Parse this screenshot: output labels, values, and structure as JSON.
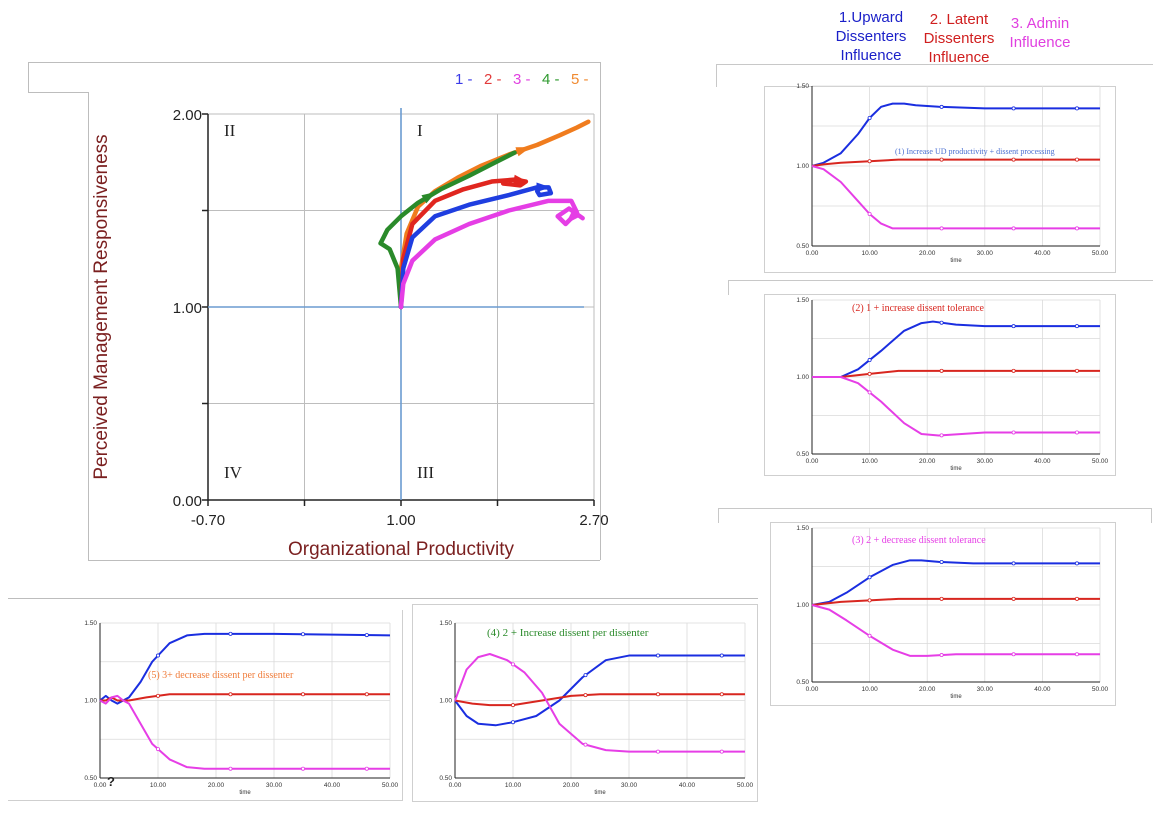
{
  "top_legend": [
    {
      "lines": [
        "1.Upward",
        "Dissenters",
        "Influence"
      ],
      "color": "#1a1fc8"
    },
    {
      "lines": [
        "2. Latent",
        "Dissenters",
        "Influence"
      ],
      "color": "#d01f1f"
    },
    {
      "lines": [
        "3. Admin",
        "Influence"
      ],
      "color": "#e040e0"
    }
  ],
  "phase_legend": [
    {
      "label": "1 -",
      "color": "#3b3be8"
    },
    {
      "label": "2 -",
      "color": "#e23b3b"
    },
    {
      "label": "3 -",
      "color": "#e040e0"
    },
    {
      "label": "4 -",
      "color": "#2e9a2e"
    },
    {
      "label": "5 -",
      "color": "#f08a30"
    }
  ],
  "colors": {
    "upward": "#1a2ee0",
    "latent": "#d8261f",
    "admin": "#e63ee6",
    "axis_line": "#6b9bd1",
    "axis_label": "#7a1f1f"
  },
  "chart_data": [
    {
      "type": "line",
      "name": "phase-plot",
      "xlabel": "Organizational Productivity",
      "ylabel": "Perceived Management Responsiveness",
      "x_tick_labels": [
        "-0.70",
        "1.00",
        "2.70"
      ],
      "y_tick_labels": [
        "0.00",
        "1.00",
        "2.00"
      ],
      "xlim": [
        -0.7,
        2.7
      ],
      "ylim": [
        0.0,
        2.0
      ],
      "quadrants": [
        "I",
        "II",
        "III",
        "IV"
      ],
      "grid": true,
      "series": [
        {
          "color": "#f07c1e",
          "x": [
            1.0,
            1.0,
            1.05,
            1.15,
            1.3,
            1.5,
            1.7,
            1.95,
            2.2,
            2.4,
            2.55,
            2.65
          ],
          "y": [
            1.0,
            1.2,
            1.38,
            1.52,
            1.6,
            1.67,
            1.73,
            1.79,
            1.84,
            1.89,
            1.93,
            1.96
          ]
        },
        {
          "color": "#2a8a2a",
          "x": [
            1.0,
            0.97,
            0.9,
            0.82,
            0.88,
            1.0,
            1.15,
            1.35,
            1.6,
            1.8,
            2.0
          ],
          "y": [
            1.0,
            1.2,
            1.3,
            1.33,
            1.4,
            1.47,
            1.54,
            1.61,
            1.68,
            1.74,
            1.8
          ]
        },
        {
          "color": "#e0261f",
          "x": [
            1.0,
            1.02,
            1.1,
            1.3,
            1.55,
            1.8,
            2.0,
            2.1,
            2.05,
            1.9
          ],
          "y": [
            1.0,
            1.25,
            1.43,
            1.55,
            1.61,
            1.65,
            1.66,
            1.65,
            1.63,
            1.64
          ]
        },
        {
          "color": "#1f3ee0",
          "x": [
            1.0,
            1.02,
            1.1,
            1.3,
            1.6,
            1.95,
            2.2,
            2.3,
            2.32,
            2.22,
            2.2
          ],
          "y": [
            1.0,
            1.2,
            1.36,
            1.47,
            1.53,
            1.58,
            1.62,
            1.62,
            1.59,
            1.58,
            1.6
          ]
        },
        {
          "color": "#e53ee5",
          "x": [
            1.0,
            1.02,
            1.1,
            1.3,
            1.6,
            1.95,
            2.3,
            2.5,
            2.55,
            2.45,
            2.38,
            2.48,
            2.6
          ],
          "y": [
            1.0,
            1.12,
            1.24,
            1.35,
            1.43,
            1.5,
            1.55,
            1.55,
            1.49,
            1.43,
            1.47,
            1.51,
            1.46
          ]
        }
      ]
    },
    {
      "type": "line",
      "name": "run-1",
      "title": "(1) Increase UD productivity + dissent processing",
      "title_color": "#4a6fd1",
      "xlabel": "time",
      "x_tick_labels": [
        "0.00",
        "10.00",
        "20.00",
        "30.00",
        "40.00",
        "50.00"
      ],
      "y_tick_labels": [
        "0.50",
        "1.00",
        "1.50"
      ],
      "xlim": [
        0,
        50
      ],
      "ylim": [
        0.5,
        1.5
      ],
      "series": [
        {
          "color": "#1a2ee0",
          "x": [
            0,
            2,
            5,
            8,
            10,
            12,
            14,
            16,
            18,
            22,
            30,
            50
          ],
          "y": [
            1.0,
            1.02,
            1.08,
            1.2,
            1.3,
            1.37,
            1.39,
            1.39,
            1.38,
            1.37,
            1.36,
            1.36
          ]
        },
        {
          "color": "#d8261f",
          "x": [
            0,
            2,
            5,
            10,
            15,
            20,
            50
          ],
          "y": [
            1.0,
            1.01,
            1.02,
            1.03,
            1.04,
            1.04,
            1.04
          ]
        },
        {
          "color": "#e63ee6",
          "x": [
            0,
            2,
            5,
            8,
            10,
            12,
            14,
            16,
            20,
            30,
            50
          ],
          "y": [
            1.0,
            0.98,
            0.9,
            0.78,
            0.7,
            0.64,
            0.61,
            0.61,
            0.61,
            0.61,
            0.61
          ]
        }
      ]
    },
    {
      "type": "line",
      "name": "run-2",
      "title": "(2) 1 +  increase dissent tolerance",
      "title_color": "#d8261f",
      "xlabel": "time",
      "x_tick_labels": [
        "0.00",
        "10.00",
        "20.00",
        "30.00",
        "40.00",
        "50.00"
      ],
      "y_tick_labels": [
        "0.50",
        "1.00",
        "1.50"
      ],
      "xlim": [
        0,
        50
      ],
      "ylim": [
        0.5,
        1.5
      ],
      "series": [
        {
          "color": "#1a2ee0",
          "x": [
            0,
            5,
            8,
            12,
            16,
            19,
            21,
            25,
            30,
            50
          ],
          "y": [
            1.0,
            1.0,
            1.05,
            1.17,
            1.3,
            1.35,
            1.36,
            1.34,
            1.33,
            1.33
          ]
        },
        {
          "color": "#d8261f",
          "x": [
            0,
            5,
            10,
            15,
            20,
            50
          ],
          "y": [
            1.0,
            1.0,
            1.02,
            1.04,
            1.04,
            1.04
          ]
        },
        {
          "color": "#e63ee6",
          "x": [
            0,
            5,
            8,
            12,
            16,
            19,
            22,
            26,
            30,
            50
          ],
          "y": [
            1.0,
            1.0,
            0.96,
            0.84,
            0.7,
            0.63,
            0.62,
            0.63,
            0.64,
            0.64
          ]
        }
      ]
    },
    {
      "type": "line",
      "name": "run-3",
      "title": "(3) 2 +  decrease dissent tolerance",
      "title_color": "#e63ee6",
      "xlabel": "time",
      "x_tick_labels": [
        "0.00",
        "10.00",
        "20.00",
        "30.00",
        "40.00",
        "50.00"
      ],
      "y_tick_labels": [
        "0.50",
        "1.00",
        "1.50"
      ],
      "xlim": [
        0,
        50
      ],
      "ylim": [
        0.5,
        1.5
      ],
      "series": [
        {
          "color": "#1a2ee0",
          "x": [
            0,
            3,
            6,
            10,
            14,
            17,
            19,
            22,
            28,
            50
          ],
          "y": [
            1.0,
            1.02,
            1.08,
            1.18,
            1.26,
            1.29,
            1.29,
            1.28,
            1.27,
            1.27
          ]
        },
        {
          "color": "#d8261f",
          "x": [
            0,
            5,
            10,
            15,
            20,
            50
          ],
          "y": [
            1.0,
            1.02,
            1.03,
            1.04,
            1.04,
            1.04
          ]
        },
        {
          "color": "#e63ee6",
          "x": [
            0,
            3,
            6,
            10,
            14,
            17,
            20,
            25,
            30,
            50
          ],
          "y": [
            1.0,
            0.97,
            0.9,
            0.8,
            0.71,
            0.67,
            0.67,
            0.68,
            0.68,
            0.68
          ]
        }
      ]
    },
    {
      "type": "line",
      "name": "run-5",
      "title": "(5) 3+ decrease dissent per dissenter",
      "title_color": "#f07c3a",
      "xlabel": "time",
      "x_tick_labels": [
        "0.00",
        "10.00",
        "20.00",
        "30.00",
        "40.00",
        "50.00"
      ],
      "y_tick_labels": [
        "0.50",
        "1.00",
        "1.50"
      ],
      "xlim": [
        0,
        50
      ],
      "ylim": [
        0.5,
        1.5
      ],
      "series": [
        {
          "color": "#1a2ee0",
          "x": [
            0,
            1,
            2,
            3,
            4,
            5,
            7,
            9,
            12,
            15,
            18,
            20,
            30,
            50
          ],
          "y": [
            1.0,
            1.03,
            1.0,
            0.98,
            1.0,
            1.02,
            1.12,
            1.25,
            1.37,
            1.42,
            1.43,
            1.43,
            1.43,
            1.42
          ]
        },
        {
          "color": "#d8261f",
          "x": [
            0,
            1,
            2,
            3,
            4,
            5,
            8,
            12,
            20,
            50
          ],
          "y": [
            1.0,
            1.0,
            1.02,
            1.0,
            1.0,
            1.0,
            1.02,
            1.04,
            1.04,
            1.04
          ]
        },
        {
          "color": "#e63ee6",
          "x": [
            0,
            1,
            2,
            3,
            4,
            5,
            7,
            9,
            12,
            15,
            18,
            20,
            30,
            50
          ],
          "y": [
            1.0,
            0.98,
            1.02,
            1.03,
            1.0,
            0.98,
            0.85,
            0.72,
            0.62,
            0.57,
            0.56,
            0.56,
            0.56,
            0.56
          ]
        }
      ]
    },
    {
      "type": "line",
      "name": "run-4",
      "title": "(4) 2 + Increase dissent per dissenter",
      "title_color": "#2a8a2a",
      "xlabel": "time",
      "x_tick_labels": [
        "0.00",
        "10.00",
        "20.00",
        "30.00",
        "40.00",
        "50.00"
      ],
      "y_tick_labels": [
        "0.50",
        "1.00",
        "1.50"
      ],
      "xlim": [
        0,
        50
      ],
      "ylim": [
        0.5,
        1.5
      ],
      "series": [
        {
          "color": "#1a2ee0",
          "x": [
            0,
            2,
            4,
            7,
            10,
            14,
            18,
            22,
            26,
            30,
            35,
            50
          ],
          "y": [
            1.0,
            0.9,
            0.85,
            0.84,
            0.86,
            0.9,
            1.0,
            1.15,
            1.26,
            1.29,
            1.29,
            1.29
          ]
        },
        {
          "color": "#d8261f",
          "x": [
            0,
            3,
            6,
            10,
            15,
            20,
            25,
            50
          ],
          "y": [
            1.0,
            0.98,
            0.97,
            0.97,
            1.0,
            1.03,
            1.04,
            1.04
          ]
        },
        {
          "color": "#e63ee6",
          "x": [
            0,
            2,
            4,
            6,
            9,
            12,
            15,
            18,
            22,
            26,
            30,
            50
          ],
          "y": [
            1.0,
            1.2,
            1.28,
            1.3,
            1.26,
            1.18,
            1.05,
            0.85,
            0.72,
            0.68,
            0.67,
            0.67
          ]
        }
      ]
    }
  ]
}
